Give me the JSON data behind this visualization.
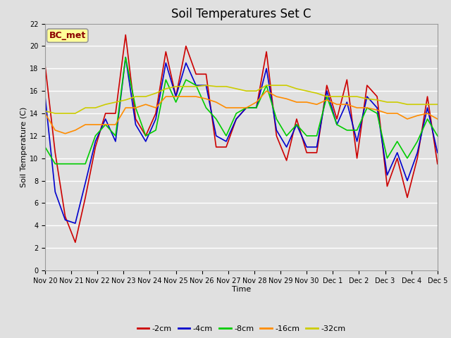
{
  "title": "Soil Temperatures Set C",
  "xlabel": "Time",
  "ylabel": "Soil Temperature (C)",
  "annotation": "BC_met",
  "ylim": [
    0,
    22
  ],
  "yticks": [
    0,
    2,
    4,
    6,
    8,
    10,
    12,
    14,
    16,
    18,
    20,
    22
  ],
  "x_labels": [
    "Nov 20",
    "Nov 21",
    "Nov 22",
    "Nov 23",
    "Nov 24",
    "Nov 25",
    "Nov 26",
    "Nov 27",
    "Nov 28",
    "Nov 29",
    "Nov 30",
    "Dec 1",
    "Dec 2",
    "Dec 3",
    "Dec 4",
    "Dec 5"
  ],
  "series": {
    "-2cm": {
      "color": "#CC0000",
      "data": [
        18.3,
        10.5,
        4.8,
        2.5,
        6.5,
        11.0,
        14.0,
        14.0,
        21.0,
        13.5,
        12.0,
        14.0,
        19.5,
        15.5,
        20.0,
        17.5,
        17.5,
        11.0,
        11.0,
        13.5,
        14.5,
        14.5,
        19.5,
        12.0,
        9.8,
        13.5,
        10.5,
        10.5,
        16.5,
        13.5,
        17.0,
        10.0,
        16.5,
        15.5,
        7.5,
        10.0,
        6.5,
        10.0,
        15.5,
        9.5
      ]
    },
    "-4cm": {
      "color": "#0000CC",
      "data": [
        15.5,
        7.0,
        4.5,
        4.2,
        7.8,
        11.5,
        13.5,
        11.5,
        19.0,
        13.0,
        11.5,
        13.5,
        18.5,
        15.5,
        18.5,
        16.5,
        16.5,
        12.0,
        11.5,
        13.5,
        14.5,
        14.5,
        18.0,
        12.5,
        11.0,
        13.0,
        11.0,
        11.0,
        16.0,
        13.0,
        15.0,
        11.5,
        15.5,
        14.5,
        8.5,
        10.5,
        8.0,
        10.5,
        14.5,
        10.5
      ]
    },
    "-8cm": {
      "color": "#00CC00",
      "data": [
        11.0,
        9.5,
        9.5,
        9.5,
        9.5,
        12.0,
        13.0,
        12.0,
        19.0,
        14.5,
        12.0,
        12.5,
        17.0,
        15.0,
        17.0,
        16.5,
        14.5,
        13.5,
        12.0,
        14.0,
        14.5,
        14.5,
        16.5,
        13.5,
        12.0,
        13.0,
        12.0,
        12.0,
        15.5,
        13.0,
        12.5,
        12.5,
        14.5,
        14.0,
        10.0,
        11.5,
        10.0,
        11.5,
        13.5,
        12.0
      ]
    },
    "-16cm": {
      "color": "#FF8C00",
      "data": [
        14.0,
        12.5,
        12.2,
        12.5,
        13.0,
        13.0,
        13.0,
        13.0,
        14.5,
        14.5,
        14.8,
        14.5,
        15.5,
        15.5,
        15.5,
        15.5,
        15.3,
        15.0,
        14.5,
        14.5,
        14.5,
        15.0,
        16.0,
        15.5,
        15.3,
        15.0,
        15.0,
        14.8,
        15.2,
        14.8,
        14.8,
        14.5,
        14.5,
        14.3,
        14.0,
        14.0,
        13.5,
        13.8,
        14.0,
        13.5
      ]
    },
    "-32cm": {
      "color": "#CCCC00",
      "data": [
        14.2,
        14.0,
        14.0,
        14.0,
        14.5,
        14.5,
        14.8,
        15.0,
        15.2,
        15.5,
        15.5,
        15.8,
        16.2,
        16.4,
        16.4,
        16.4,
        16.5,
        16.4,
        16.4,
        16.2,
        16.0,
        16.0,
        16.5,
        16.5,
        16.5,
        16.2,
        16.0,
        15.8,
        15.5,
        15.5,
        15.5,
        15.5,
        15.3,
        15.2,
        15.0,
        15.0,
        14.8,
        14.8,
        14.8,
        14.8
      ]
    }
  },
  "bg_color": "#E0E0E0",
  "plot_bg_color": "#E0E0E0",
  "grid_color": "#FFFFFF",
  "title_fontsize": 12,
  "axis_fontsize": 8,
  "tick_fontsize": 7,
  "legend_fontsize": 8
}
